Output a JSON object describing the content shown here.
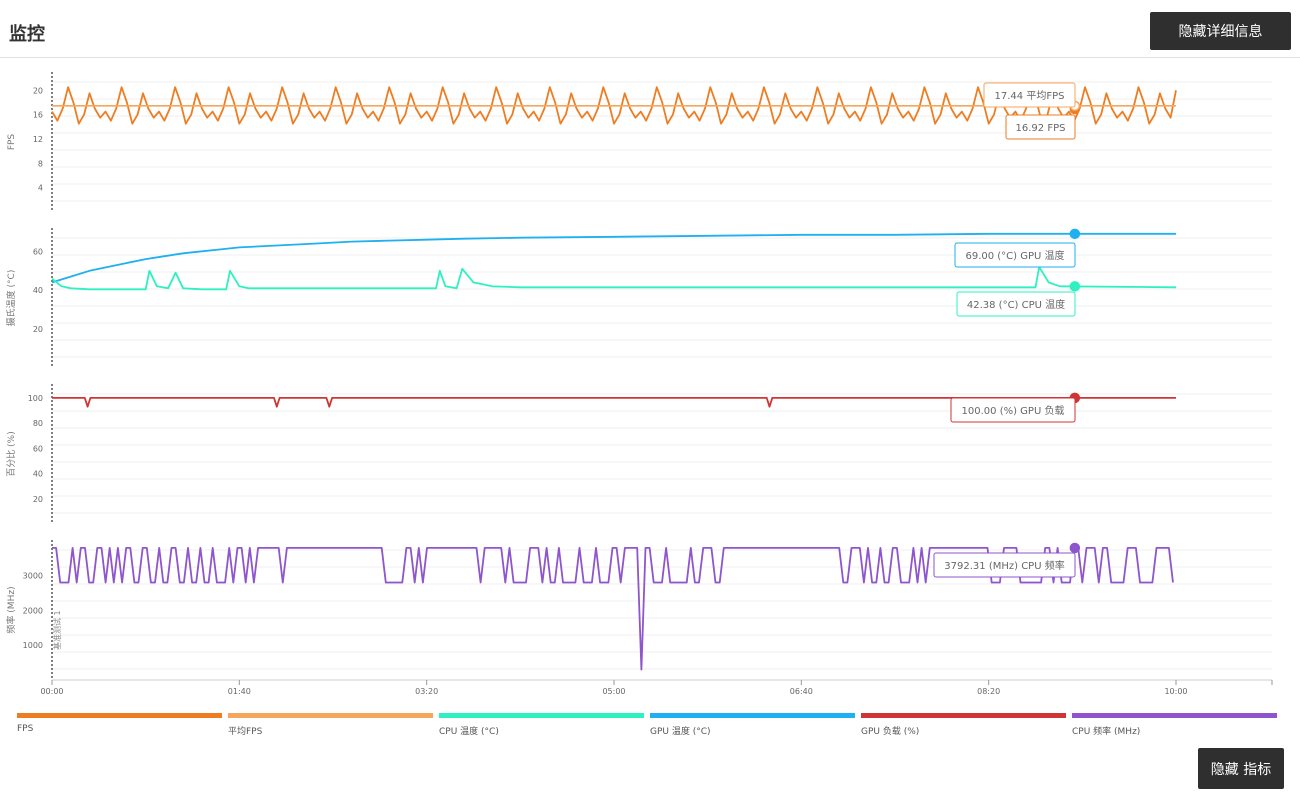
{
  "header": {
    "title": "监控",
    "hide_details_label": "隐藏详细信息"
  },
  "footer": {
    "hide_metrics_label": "隐藏 指标"
  },
  "colors": {
    "fps": "#ee7d22",
    "avg_fps": "#f5a65b",
    "cpu_temp": "#2ff0c0",
    "gpu_temp": "#1eb0ef",
    "gpu_load": "#d03535",
    "cpu_freq": "#8e55cc"
  },
  "legend": [
    {
      "label": "FPS",
      "color": "#ee7d22"
    },
    {
      "label": "平均FPS",
      "color": "#f5a65b"
    },
    {
      "label": "CPU 温度 (°C)",
      "color": "#2ff0c0"
    },
    {
      "label": "GPU 温度 (°C)",
      "color": "#1eb0ef"
    },
    {
      "label": "GPU 负载 (%)",
      "color": "#d03535"
    },
    {
      "label": "CPU 频率 (MHz)",
      "color": "#8e55cc"
    }
  ],
  "chart_data": [
    {
      "type": "line",
      "ylabel": "FPS",
      "yticks": [
        4,
        8,
        12,
        16,
        20
      ],
      "ylim": [
        0,
        23
      ],
      "xlim": [
        0,
        600
      ],
      "tooltips": [
        "17.44 平均FPS",
        "16.92 FPS"
      ],
      "series": [
        {
          "name": "FPS",
          "color": "#ee7d22",
          "pattern": [
            16.5,
            15,
            17,
            20.5,
            18,
            14.5,
            16,
            19.5,
            17,
            15.5
          ],
          "x_end": 600,
          "last": 20
        },
        {
          "name": "平均FPS",
          "color": "#f5a65b",
          "constant": 17.44,
          "x_end": 600
        }
      ]
    },
    {
      "type": "line",
      "ylabel": "摄氏温度 (°C)",
      "yticks": [
        20,
        40,
        60
      ],
      "ylim": [
        0,
        72
      ],
      "xlim": [
        0,
        600
      ],
      "tooltips": [
        "69.00 (°C) GPU 温度",
        "42.38 (°C) CPU 温度"
      ],
      "series": [
        {
          "name": "GPU 温度",
          "color": "#1eb0ef",
          "points": [
            [
              0,
              44
            ],
            [
              10,
              47
            ],
            [
              20,
              50
            ],
            [
              30,
              52
            ],
            [
              40,
              54
            ],
            [
              50,
              56
            ],
            [
              60,
              57.5
            ],
            [
              70,
              59
            ],
            [
              80,
              60
            ],
            [
              90,
              61
            ],
            [
              100,
              62
            ],
            [
              120,
              63
            ],
            [
              140,
              64
            ],
            [
              160,
              65
            ],
            [
              180,
              65.5
            ],
            [
              200,
              66
            ],
            [
              220,
              66.5
            ],
            [
              250,
              67
            ],
            [
              300,
              67.5
            ],
            [
              350,
              68
            ],
            [
              400,
              68.5
            ],
            [
              450,
              68.5
            ],
            [
              500,
              69
            ],
            [
              550,
              69
            ],
            [
              600,
              69
            ]
          ]
        },
        {
          "name": "CPU 温度",
          "color": "#2ff0c0",
          "points": [
            [
              0,
              46
            ],
            [
              5,
              42
            ],
            [
              10,
              41
            ],
            [
              20,
              40.5
            ],
            [
              50,
              40.5
            ],
            [
              52,
              50
            ],
            [
              56,
              42
            ],
            [
              62,
              41
            ],
            [
              66,
              49
            ],
            [
              70,
              41
            ],
            [
              80,
              40.5
            ],
            [
              93,
              40.5
            ],
            [
              95,
              50
            ],
            [
              100,
              42
            ],
            [
              105,
              41
            ],
            [
              150,
              41
            ],
            [
              200,
              41
            ],
            [
              205,
              41
            ],
            [
              207,
              50
            ],
            [
              210,
              42
            ],
            [
              216,
              41
            ],
            [
              219,
              51
            ],
            [
              225,
              44
            ],
            [
              235,
              42
            ],
            [
              250,
              41.5
            ],
            [
              300,
              41.5
            ],
            [
              500,
              41.5
            ],
            [
              525,
              41.5
            ],
            [
              527,
              52
            ],
            [
              532,
              44
            ],
            [
              538,
              42
            ],
            [
              600,
              41.5
            ]
          ]
        }
      ]
    },
    {
      "type": "line",
      "ylabel": "百分比 (%)",
      "yticks": [
        20,
        40,
        60,
        80,
        100
      ],
      "ylim": [
        0,
        111
      ],
      "xlim": [
        0,
        600
      ],
      "tooltips": [
        "100.00 (%) GPU 负载"
      ],
      "series": [
        {
          "name": "GPU 负载",
          "color": "#d03535",
          "constant": 100,
          "dips": [
            19,
            120,
            148,
            383
          ],
          "dip_value": 93,
          "x_end": 600
        }
      ]
    },
    {
      "type": "line",
      "ylabel": "频率 (MHz)",
      "annotation": "基准测试 1",
      "yticks": [
        1000,
        2000,
        3000
      ],
      "ylim": [
        0,
        4020
      ],
      "xlim": [
        0,
        600
      ],
      "tooltips": [
        "3792.31 (MHz) CPU 频率"
      ],
      "series": [
        {
          "name": "CPU 频率",
          "color": "#8e55cc",
          "high": 3792,
          "low": 2800,
          "spike_x": 314,
          "spike_value": 300,
          "x_end": 600
        }
      ]
    }
  ],
  "x_axis": {
    "ticks": [
      "00:00",
      "01:40",
      "03:20",
      "05:00",
      "06:40",
      "08:20",
      "10:00"
    ],
    "tick_values": [
      0,
      100,
      200,
      300,
      400,
      500,
      600
    ]
  }
}
